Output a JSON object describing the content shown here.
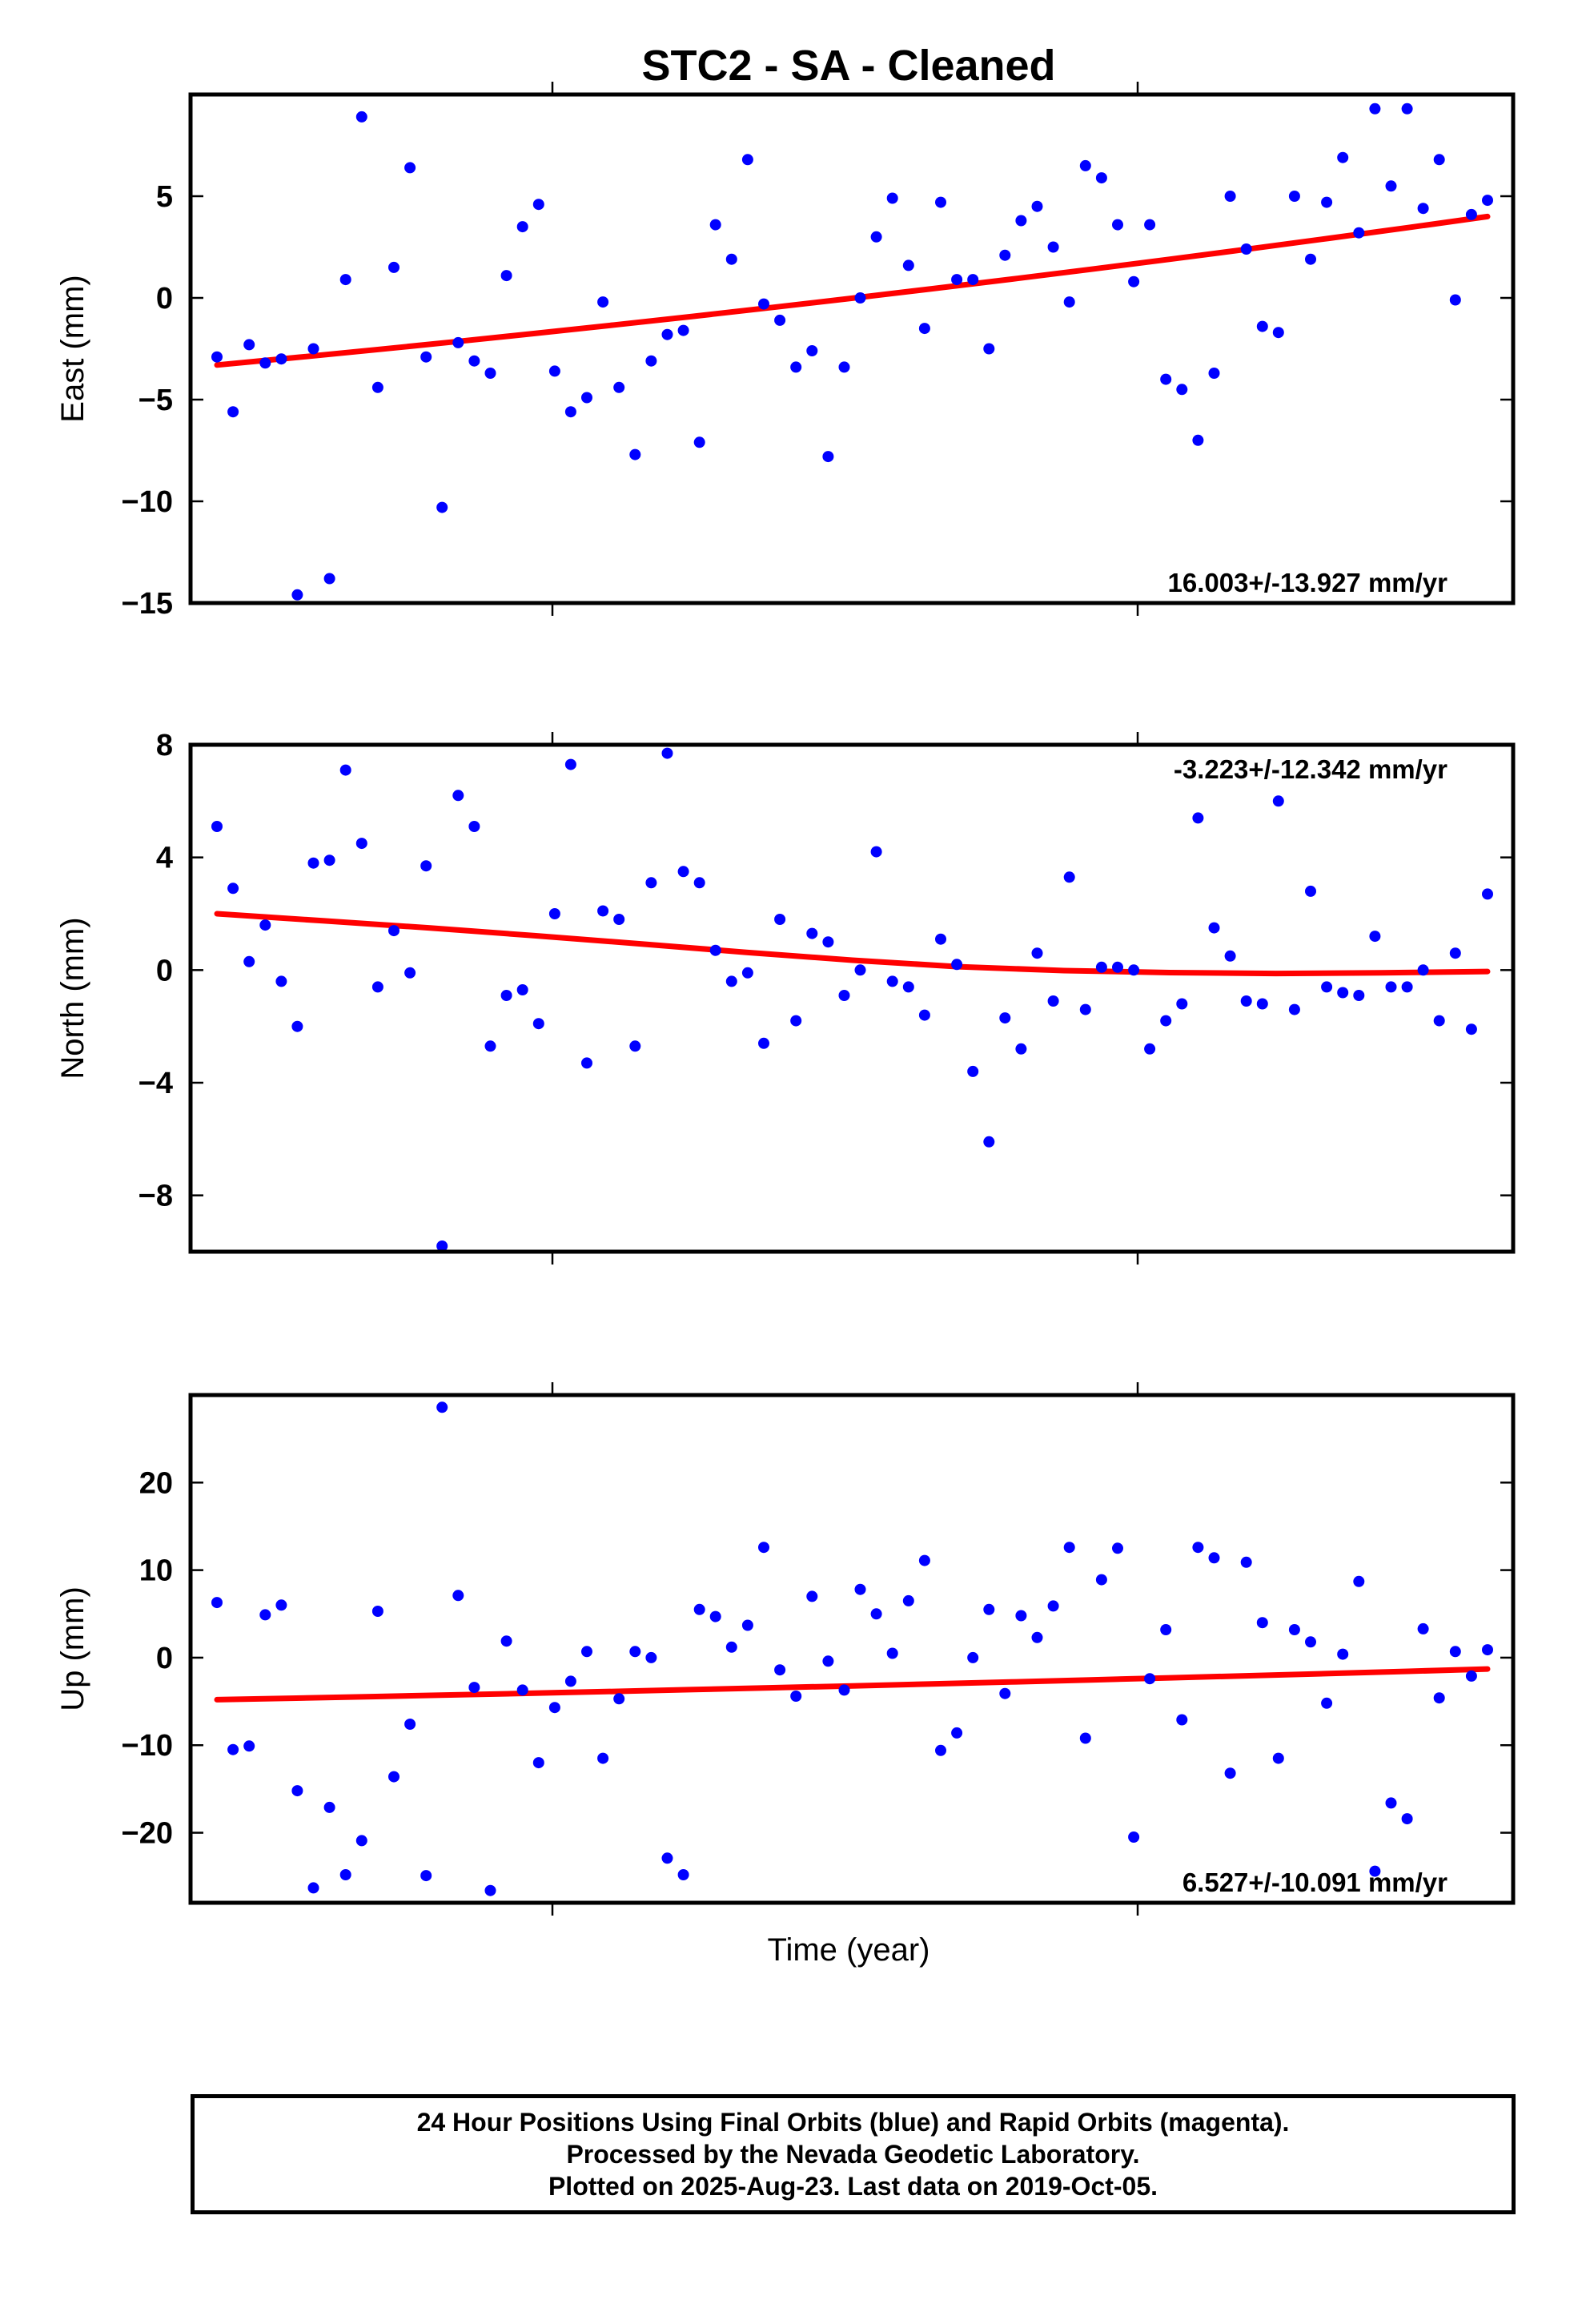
{
  "title": "STC2  - SA - Cleaned",
  "xlabel": "Time (year)",
  "info": {
    "line1": "24 Hour Positions Using Final Orbits (blue) and Rapid Orbits (magenta).",
    "line2": "Processed by the Nevada Geodetic Laboratory.",
    "line3": "Plotted on 2025-Aug-23. Last data on 2019-Oct-05."
  },
  "colors": {
    "points": "#0000ff",
    "trend": "#ff0000",
    "frame": "#000000"
  },
  "chart_data": [
    {
      "type": "scatter",
      "ylabel": "East (mm)",
      "ylim": [
        -15,
        10
      ],
      "yticks": [
        -15,
        -10,
        -5,
        0,
        5
      ],
      "rate_label": "16.003+/-13.927 mm/yr",
      "rate_position": "bottom-right",
      "x": [
        0,
        1,
        2,
        3,
        4,
        5,
        6,
        7,
        8,
        9,
        10,
        11,
        12,
        13,
        14,
        15,
        16,
        17,
        18,
        19,
        20,
        21,
        22,
        23,
        24,
        25,
        26,
        27,
        28,
        29,
        30,
        31,
        32,
        33,
        34,
        35,
        36,
        37,
        38,
        39,
        40,
        41,
        42,
        43,
        44,
        45,
        46,
        47,
        48,
        49,
        50,
        51,
        52,
        53,
        54,
        55,
        56,
        57,
        58,
        59,
        60,
        61,
        62,
        63,
        64,
        65,
        66,
        67,
        68,
        69,
        70,
        71,
        72,
        73,
        74,
        75,
        76,
        77,
        78,
        79
      ],
      "y": [
        -2.9,
        -5.6,
        -2.3,
        -3.2,
        -3.0,
        -14.6,
        -2.5,
        -13.8,
        0.9,
        8.9,
        -4.4,
        1.5,
        6.4,
        -2.9,
        -10.3,
        -2.2,
        -3.1,
        -3.7,
        1.1,
        3.5,
        4.6,
        -3.6,
        -5.6,
        -4.9,
        -0.2,
        -4.4,
        -7.7,
        -3.1,
        -1.8,
        -1.6,
        -7.1,
        3.6,
        1.9,
        6.8,
        -0.3,
        -1.1,
        -3.4,
        -2.6,
        -7.8,
        -3.4,
        0.0,
        3.0,
        4.9,
        1.6,
        -1.5,
        4.7,
        0.9,
        0.9,
        -2.5,
        2.1,
        3.8,
        4.5,
        2.5,
        -0.2,
        6.5,
        5.9,
        3.6,
        0.8,
        3.6,
        -4.0,
        -4.5,
        -7.0,
        -3.7,
        5.0,
        2.4,
        -1.4,
        -1.7,
        5.0,
        1.9,
        4.7,
        6.9,
        3.2,
        9.3,
        5.5,
        9.3,
        4.4,
        6.8,
        -0.1,
        4.1,
        4.8
      ],
      "trend_start": -3.3,
      "trend_end": 4.0
    },
    {
      "type": "scatter",
      "ylabel": "North (mm)",
      "ylim": [
        -10,
        8
      ],
      "yticks": [
        -8,
        -4,
        0,
        4,
        8
      ],
      "rate_label": "-3.223+/-12.342 mm/yr",
      "rate_position": "top-right",
      "x": [
        0,
        1,
        2,
        3,
        4,
        5,
        6,
        7,
        8,
        9,
        10,
        11,
        12,
        13,
        14,
        15,
        16,
        17,
        18,
        19,
        20,
        21,
        22,
        23,
        24,
        25,
        26,
        27,
        28,
        29,
        30,
        31,
        32,
        33,
        34,
        35,
        36,
        37,
        38,
        39,
        40,
        41,
        42,
        43,
        44,
        45,
        46,
        47,
        48,
        49,
        50,
        51,
        52,
        53,
        54,
        55,
        56,
        57,
        58,
        59,
        60,
        61,
        62,
        63,
        64,
        65,
        66,
        67,
        68,
        69,
        70,
        71,
        72,
        73,
        74,
        75,
        76,
        77,
        78,
        79
      ],
      "y": [
        5.1,
        2.9,
        0.3,
        1.6,
        -0.4,
        -2.0,
        3.8,
        3.9,
        7.1,
        4.5,
        -0.6,
        1.4,
        -0.1,
        3.7,
        -9.8,
        6.2,
        5.1,
        -2.7,
        -0.9,
        -0.7,
        -1.9,
        2.0,
        7.3,
        -3.3,
        2.1,
        1.8,
        -2.7,
        3.1,
        7.7,
        3.5,
        3.1,
        0.7,
        -0.4,
        -0.1,
        -2.6,
        1.8,
        -1.8,
        1.3,
        1.0,
        -0.9,
        0.0,
        4.2,
        -0.4,
        -0.6,
        -1.6,
        1.1,
        0.2,
        -3.6,
        -6.1,
        -1.7,
        -2.8,
        0.6,
        -1.1,
        3.3,
        -1.4,
        0.1,
        0.1,
        0.0,
        -2.8,
        -1.8,
        -1.2,
        5.4,
        1.5,
        0.5,
        -1.1,
        -1.2,
        6.0,
        -1.4,
        2.8,
        -0.6,
        -0.8,
        -0.9,
        1.2,
        -0.6,
        -0.6,
        0.0,
        -1.8,
        0.6,
        -2.1,
        2.7
      ],
      "trend": [
        2.0,
        1.75,
        1.5,
        1.22,
        0.93,
        0.63,
        0.35,
        0.12,
        -0.02,
        -0.09,
        -0.12,
        -0.1,
        -0.05
      ]
    },
    {
      "type": "scatter",
      "ylabel": "Up (mm)",
      "ylim": [
        -28,
        30
      ],
      "yticks": [
        -20,
        -10,
        0,
        10,
        20
      ],
      "rate_label": "6.527+/-10.091 mm/yr",
      "rate_position": "bottom-right",
      "x": [
        0,
        1,
        2,
        3,
        4,
        5,
        6,
        7,
        8,
        9,
        10,
        11,
        12,
        13,
        14,
        15,
        16,
        17,
        18,
        19,
        20,
        21,
        22,
        23,
        24,
        25,
        26,
        27,
        28,
        29,
        30,
        31,
        32,
        33,
        34,
        35,
        36,
        37,
        38,
        39,
        40,
        41,
        42,
        43,
        44,
        45,
        46,
        47,
        48,
        49,
        50,
        51,
        52,
        53,
        54,
        55,
        56,
        57,
        58,
        59,
        60,
        61,
        62,
        63,
        64,
        65,
        66,
        67,
        68,
        69,
        70,
        71,
        72,
        73,
        74,
        75,
        76,
        77,
        78,
        79
      ],
      "y": [
        6.3,
        -10.5,
        -10.1,
        4.9,
        6.0,
        -15.2,
        -26.3,
        -17.1,
        -24.8,
        -20.9,
        5.3,
        -13.6,
        -7.6,
        -24.9,
        28.6,
        7.1,
        -3.4,
        -26.6,
        1.9,
        -3.7,
        -12.0,
        -5.7,
        -2.7,
        0.7,
        -11.5,
        -4.7,
        0.7,
        0.0,
        -22.9,
        -24.8,
        5.5,
        4.7,
        1.2,
        3.7,
        12.6,
        -1.4,
        -4.4,
        7.0,
        -0.4,
        -3.7,
        7.8,
        5.0,
        0.5,
        6.5,
        11.1,
        -10.6,
        -8.6,
        0.0,
        5.5,
        -4.1,
        4.8,
        2.3,
        5.9,
        12.6,
        -9.2,
        8.9,
        12.5,
        -20.5,
        -2.4,
        3.2,
        -7.1,
        12.6,
        11.4,
        -13.2,
        10.9,
        4.0,
        -11.5,
        3.2,
        1.8,
        -5.2,
        0.4,
        8.7,
        -24.4,
        -16.6,
        -18.4,
        3.3,
        -4.6,
        0.7,
        -2.1,
        0.9
      ],
      "trend_start": -4.8,
      "trend_end": -1.3
    }
  ]
}
